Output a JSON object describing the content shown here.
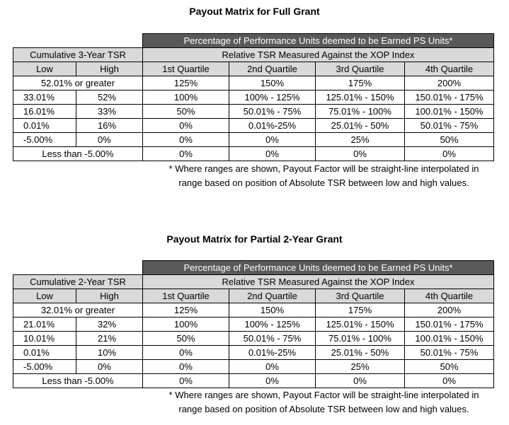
{
  "tables": [
    {
      "title": "Payout Matrix for Full Grant",
      "top_header": "Percentage of Performance Units deemed to be Earned PS Units*",
      "left_header": "Cumulative 3-Year TSR",
      "right_header": "Relative TSR Measured Against the XOP Index",
      "low_label": "Low",
      "high_label": "High",
      "quartiles": [
        "1st Quartile",
        "2nd Quartile",
        "3rd Quartile",
        "4th Quartile"
      ],
      "top_row": {
        "label": "52.01% or greater",
        "values": [
          "125%",
          "150%",
          "175%",
          "200%"
        ]
      },
      "rows": [
        {
          "low": "33.01%",
          "high": "52%",
          "values": [
            "100%",
            "100% - 125%",
            "125.01% - 150%",
            "150.01% - 175%"
          ]
        },
        {
          "low": "16.01%",
          "high": "33%",
          "values": [
            "50%",
            "50.01% - 75%",
            "75.01% - 100%",
            "100.01% - 150%"
          ]
        },
        {
          "low": "0.01%",
          "high": "16%",
          "values": [
            "0%",
            "0.01%-25%",
            "25.01% - 50%",
            "50.01% - 75%"
          ]
        },
        {
          "low": "-5.00%",
          "high": "0%",
          "values": [
            "0%",
            "0%",
            "25%",
            "50%"
          ]
        }
      ],
      "bottom_row": {
        "label": "Less than -5.00%",
        "values": [
          "0%",
          "0%",
          "0%",
          "0%"
        ]
      },
      "note_line1": "* Where ranges are shown, Payout Factor will be straight-line interpolated in",
      "note_line2": "range based on position of Absolute TSR between low and high values."
    },
    {
      "title": "Payout Matrix for Partial 2-Year Grant",
      "top_header": "Percentage of Performance Units deemed to be Earned PS Units*",
      "left_header": "Cumulative 2-Year TSR",
      "right_header": "Relative TSR Measured Against the XOP Index",
      "low_label": "Low",
      "high_label": "High",
      "quartiles": [
        "1st Quartile",
        "2nd Quartile",
        "3rd Quartile",
        "4th Quartile"
      ],
      "top_row": {
        "label": "32.01% or greater",
        "values": [
          "125%",
          "150%",
          "175%",
          "200%"
        ]
      },
      "rows": [
        {
          "low": "21.01%",
          "high": "32%",
          "values": [
            "100%",
            "100% - 125%",
            "125.01% - 150%",
            "150.01% - 175%"
          ]
        },
        {
          "low": "10.01%",
          "high": "21%",
          "values": [
            "50%",
            "50.01% - 75%",
            "75.01% - 100%",
            "100.01% - 150%"
          ]
        },
        {
          "low": "0.01%",
          "high": "10%",
          "values": [
            "0%",
            "0.01%-25%",
            "25.01% - 50%",
            "50.01% - 75%"
          ]
        },
        {
          "low": "-5.00%",
          "high": "0%",
          "values": [
            "0%",
            "0%",
            "25%",
            "50%"
          ]
        }
      ],
      "bottom_row": {
        "label": "Less than -5.00%",
        "values": [
          "0%",
          "0%",
          "0%",
          "0%"
        ]
      },
      "note_line1": "* Where ranges are shown, Payout Factor will be straight-line interpolated in",
      "note_line2": "range based on position of Absolute TSR between low and high values."
    }
  ]
}
